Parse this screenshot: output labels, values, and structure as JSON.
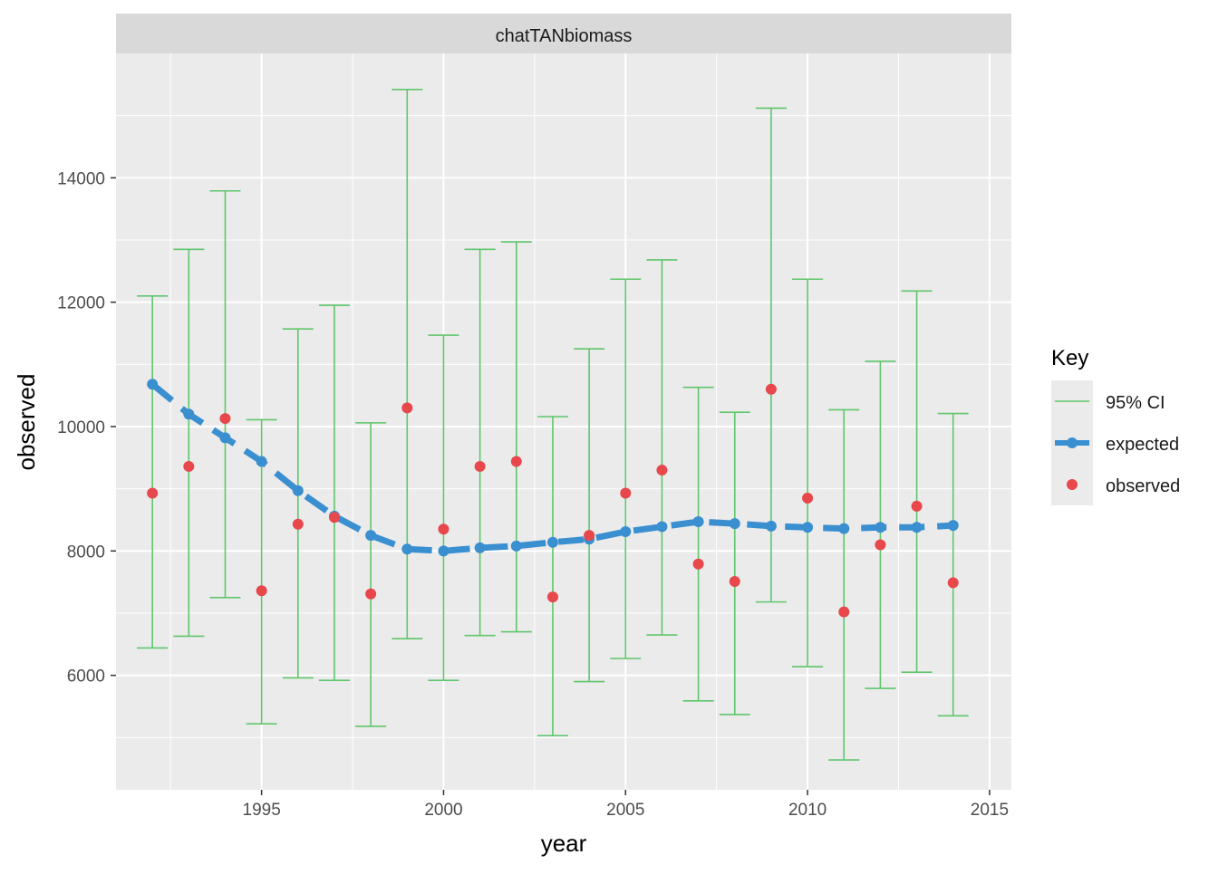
{
  "chart_data": {
    "type": "scatter",
    "panel_title": "chatTANbiomass",
    "xlabel": "year",
    "ylabel": "observed",
    "xlim": [
      1991.0,
      2015.6
    ],
    "ylim": [
      4160,
      16000
    ],
    "x_ticks": [
      1995,
      2000,
      2005,
      2010,
      2015
    ],
    "x_tick_labels": [
      "1995",
      "2000",
      "2005",
      "2010",
      "2015"
    ],
    "y_ticks": [
      6000,
      8000,
      10000,
      12000,
      14000
    ],
    "y_tick_labels": [
      "6000",
      "8000",
      "10000",
      "12000",
      "14000"
    ],
    "grid": true,
    "legend": {
      "title": "Key",
      "position": "right",
      "entries": [
        "95% CI",
        "expected",
        "observed"
      ]
    },
    "colors": {
      "ci": "#5fc66c",
      "expected": "#3a8fd0",
      "observed": "#e8474c",
      "panel_bg": "#ebebeb",
      "strip_bg": "#d9d9d9",
      "grid": "#ffffff"
    },
    "x": [
      1992,
      1993,
      1994,
      1995,
      1996,
      1997,
      1998,
      1999,
      2000,
      2001,
      2002,
      2003,
      2004,
      2005,
      2006,
      2007,
      2008,
      2009,
      2010,
      2011,
      2012,
      2013,
      2014
    ],
    "series": [
      {
        "name": "observed",
        "values": [
          8930,
          9360,
          10130,
          7360,
          8430,
          8540,
          7310,
          10300,
          8350,
          9360,
          9440,
          7260,
          8250,
          8930,
          9300,
          7790,
          7510,
          10600,
          8850,
          7020,
          8100,
          8720,
          7490
        ]
      },
      {
        "name": "expected",
        "values": [
          10680,
          10200,
          9820,
          9440,
          8970,
          8560,
          8250,
          8030,
          8000,
          8050,
          8080,
          8140,
          8190,
          8310,
          8390,
          8470,
          8440,
          8400,
          8380,
          8360,
          8380,
          8380,
          8410
        ]
      },
      {
        "name": "95% CI",
        "lower": [
          6440,
          6630,
          7250,
          5220,
          5960,
          5920,
          5180,
          6590,
          5920,
          6640,
          6700,
          5030,
          5900,
          6270,
          6650,
          5590,
          5370,
          7180,
          6140,
          4640,
          5790,
          6050,
          5350
        ],
        "upper": [
          12100,
          12850,
          13790,
          10110,
          11570,
          11950,
          10060,
          15420,
          11470,
          12850,
          12970,
          10160,
          11250,
          12370,
          12680,
          10630,
          10230,
          15120,
          12370,
          10270,
          11050,
          12180,
          10210
        ]
      }
    ]
  }
}
